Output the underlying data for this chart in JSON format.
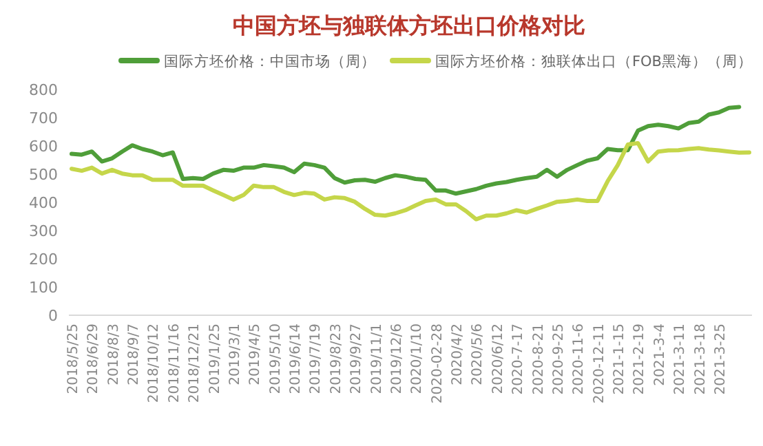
{
  "chart_data": {
    "type": "line",
    "title": "中国方坯与独联体方坯出口价格对比",
    "categories": [
      "2018/5/25",
      null,
      "2018/6/29",
      null,
      "2018/8/3",
      null,
      "2018/9/7",
      null,
      "2018/10/12",
      null,
      "2018/11/16",
      null,
      "2018/12/21",
      null,
      "2019/1/25",
      null,
      "2019/3/1",
      null,
      "2019/4/5",
      null,
      "2019/5/10",
      null,
      "2019/6/14",
      null,
      "2019/7/19",
      null,
      "2019/8/23",
      null,
      "2019/9/27",
      null,
      "2019/11/1",
      null,
      "2019/12/6",
      null,
      "2020/1/10",
      null,
      "2020-02-28",
      null,
      "2020/4/2",
      null,
      "2020/5/6",
      null,
      "2020/6/12",
      null,
      "2020-7-17",
      null,
      "2020-8-21",
      null,
      "2020-9-25",
      null,
      "2020-11-6",
      null,
      "2020-12-11",
      null,
      "2021-1-15",
      null,
      "2021-2-19",
      null,
      "2021-3-4",
      null,
      "2021-3-11",
      null,
      "2021-3-18",
      null,
      "2021-3-25",
      null,
      null,
      null
    ],
    "series": [
      {
        "name": "国际方坯价格：中国市场（周）",
        "color": "#4f9e39",
        "values": [
          572,
          569,
          580,
          545,
          556,
          580,
          602,
          589,
          580,
          567,
          577,
          483,
          486,
          483,
          502,
          515,
          512,
          523,
          523,
          532,
          528,
          523,
          507,
          537,
          532,
          523,
          486,
          470,
          478,
          480,
          473,
          486,
          496,
          491,
          483,
          480,
          442,
          442,
          431,
          439,
          447,
          459,
          467,
          472,
          480,
          486,
          491,
          515,
          491,
          515,
          532,
          548,
          556,
          589,
          585,
          585,
          654,
          670,
          675,
          670,
          662,
          681,
          686,
          711,
          719,
          735,
          738,
          null
        ]
      },
      {
        "name": "国际方坯价格：独联体出口（FOB黑海）（周）",
        "color": "#c5d64a",
        "values": [
          519,
          512,
          523,
          502,
          515,
          502,
          496,
          496,
          480,
          480,
          480,
          459,
          459,
          459,
          442,
          426,
          410,
          426,
          459,
          454,
          454,
          437,
          426,
          434,
          431,
          410,
          418,
          415,
          402,
          377,
          356,
          353,
          361,
          372,
          389,
          405,
          410,
          393,
          393,
          369,
          340,
          353,
          353,
          361,
          372,
          364,
          377,
          389,
          402,
          405,
          410,
          405,
          405,
          475,
          532,
          605,
          610,
          545,
          580,
          584,
          585,
          589,
          592,
          587,
          584,
          580,
          576,
          577
        ]
      }
    ],
    "ylim": [
      0,
      800
    ],
    "yticks": [
      0,
      100,
      200,
      300,
      400,
      500,
      600,
      700,
      800
    ],
    "legend": "top"
  }
}
